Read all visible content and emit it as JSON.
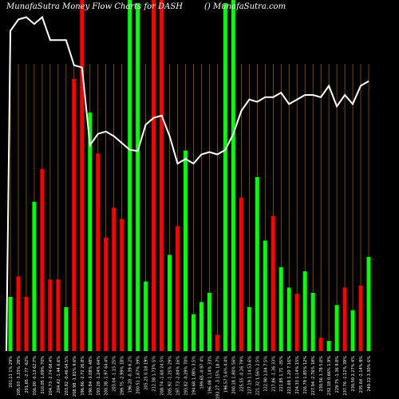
{
  "header": {
    "left_title": "MunafaSutra  Money Flow  Charts for DASH",
    "right_title": "() MunafaSutra.com"
  },
  "colors": {
    "background": "#000000",
    "up": "#00ff00",
    "down": "#ff0000",
    "grid": "#c87800",
    "line": "#ffffff"
  },
  "chart_data": {
    "type": "bar",
    "categories": [
      "201.11 1% 29%",
      "205.03 -3.33% 28%",
      "201.65 -2.77 -62%",
      "206.00 -0.13 62.7%",
      "210.05 1.09% 70%",
      "204.73 -2.74 68.4%",
      "204.42 -1.44 6.6%",
      "203.92 -0.46 64.5%",
      "208.98 -1.81% 9.6%",
      "196.86 -2.72 26.8%",
      "190.84 -3.08% 48%",
      "193.28 -1.24% 64%",
      "200.38 -1.97 64.4%",
      "203.04 -1.15 25%",
      "199.75 -2.99% 18%",
      "196.20 -0.39 6.2%",
      "200.51 1.67% 39%",
      "205.25 0.18 19%",
      "212.38 1.73% 5%",
      "208.74 -1.60 24.5%",
      "205.92 -1.25% 29%",
      "197.73 -2.84% 16%",
      "193.82 -0.29% 70%",
      "194.68 1.08% 3.5%",
      "199.65 -0.97 4%",
      "196.08 1.14% 33%",
      "193.27 -3.15% 18.7%",
      "196.57 5.6% 4.4%",
      "200.18 1.80% 56%",
      "225.55 -0.26 79%",
      "227.19 1.14 53.6%",
      "221.32 1.56% 2.5%",
      "222.90 1.04 7.5%",
      "217.86 -1.36 33%",
      "221.85 1.71 -35%",
      "222.68 1.20 7.16%",
      "224.33 1.14% 15%",
      "226.79 1.85% 12%",
      "227.94 -2.76% 18%",
      "230.56 1.78 5.0%",
      "232.18 0.66% 1.9%",
      "229.75 -1.36 9.8%",
      "237.76 -1.12% 39%",
      "230.50 2.27% 4%",
      "235.64 -2.14% 8%",
      "240.22 3.30% 6%"
    ],
    "series": [
      {
        "values": [
          53,
          73,
          53,
          146,
          178,
          70,
          70,
          43,
          266,
          500,
          233,
          193,
          111,
          140,
          129,
          500,
          340,
          68,
          500,
          500,
          94,
          122,
          196,
          36,
          48,
          57,
          16,
          340,
          343,
          150,
          43,
          170,
          108,
          132,
          82,
          62,
          56,
          78,
          57,
          13,
          10,
          45,
          62,
          40,
          64,
          92
        ]
      }
    ],
    "bar_colors": [
      "up",
      "down",
      "down",
      "up",
      "down",
      "down",
      "down",
      "up",
      "down",
      "down",
      "up",
      "down",
      "down",
      "down",
      "down",
      "up",
      "up",
      "up",
      "down",
      "down",
      "up",
      "down",
      "up",
      "up",
      "up",
      "up",
      "down",
      "up",
      "up",
      "down",
      "up",
      "up",
      "up",
      "down",
      "up",
      "up",
      "down",
      "up",
      "up",
      "down",
      "up",
      "up",
      "down",
      "up",
      "down",
      "up"
    ],
    "line_values": [
      280,
      290,
      292,
      286,
      292,
      272,
      272,
      272,
      250,
      248,
      180,
      190,
      192,
      188,
      182,
      176,
      175,
      198,
      204,
      206,
      188,
      164,
      168,
      164,
      172,
      174,
      172,
      176,
      190,
      210,
      220,
      218,
      222,
      222,
      226,
      216,
      220,
      224,
      224,
      222,
      232,
      214,
      224,
      216,
      232,
      236
    ],
    "bar_ylim": [
      0,
      343
    ],
    "line_ylim": [
      0,
      307
    ],
    "legend": "none",
    "grid": "vertical"
  }
}
